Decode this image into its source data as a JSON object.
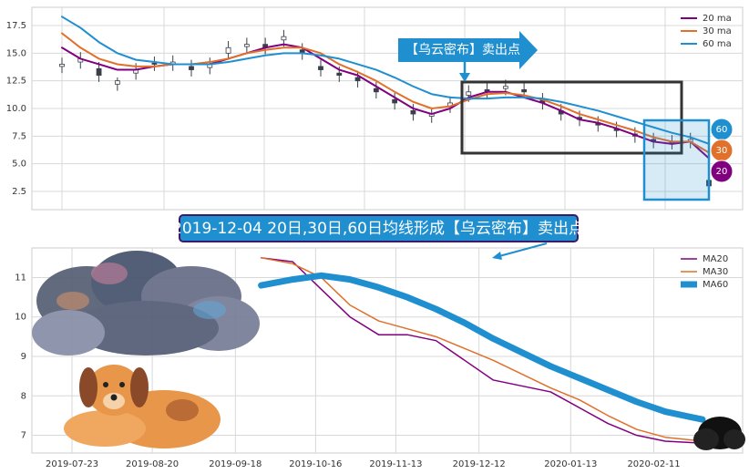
{
  "chart_data": [
    {
      "type": "candlestick",
      "categories": [
        null,
        null,
        null,
        null,
        null,
        null,
        null,
        null,
        null,
        null,
        null,
        null,
        null,
        null,
        null,
        null,
        null,
        null,
        null,
        null,
        null,
        null,
        null,
        null,
        null,
        null,
        null,
        null,
        null,
        null,
        null,
        null,
        null,
        null,
        null,
        null
      ],
      "open": [
        13.8,
        14.2,
        13.6,
        12.2,
        13.2,
        14.1,
        14.0,
        13.8,
        13.7,
        15.0,
        15.6,
        15.8,
        16.2,
        15.3,
        13.8,
        13.2,
        12.8,
        11.8,
        10.8,
        9.8,
        9.3,
        10.2,
        11.2,
        11.7,
        11.8,
        11.7,
        10.8,
        9.8,
        9.2,
        8.7,
        8.2,
        7.7,
        7.2,
        6.9,
        7.0,
        3.5
      ],
      "high": [
        14.6,
        15.1,
        14.2,
        12.8,
        14.1,
        14.7,
        14.8,
        14.4,
        14.6,
        16.1,
        16.4,
        16.4,
        17.1,
        15.9,
        14.4,
        13.8,
        13.4,
        12.4,
        11.4,
        10.4,
        10.1,
        11.1,
        12.1,
        12.3,
        12.6,
        12.3,
        11.4,
        10.4,
        9.8,
        9.3,
        8.8,
        8.3,
        7.8,
        7.6,
        7.8,
        4.1
      ],
      "low": [
        13.2,
        13.6,
        12.4,
        11.6,
        12.6,
        13.4,
        13.4,
        12.9,
        13.1,
        14.4,
        15.0,
        14.9,
        15.6,
        14.4,
        12.9,
        12.4,
        11.9,
        10.9,
        9.9,
        8.9,
        8.7,
        9.6,
        10.6,
        10.9,
        11.2,
        10.9,
        9.9,
        8.9,
        8.4,
        7.9,
        7.4,
        6.9,
        6.4,
        6.3,
        6.4,
        2.4
      ],
      "close": [
        14,
        14.5,
        13,
        12.5,
        13.5,
        14,
        14.2,
        13.5,
        14,
        15.5,
        15.8,
        15.5,
        16.5,
        15,
        13.5,
        13,
        12.5,
        11.5,
        10.5,
        9.5,
        9.5,
        10.5,
        11.5,
        11.5,
        12,
        11.5,
        10.5,
        9.5,
        9,
        8.5,
        8,
        7.5,
        7,
        7,
        7.2,
        3
      ],
      "candle_color": "#3a3f4a",
      "series": [
        {
          "name": "20 ma",
          "color": "#800080",
          "values": [
            15.5,
            14.5,
            14,
            13.5,
            13.5,
            13.8,
            14,
            14,
            14,
            14.5,
            15,
            15.5,
            15.8,
            15.5,
            14.5,
            13.5,
            13,
            12,
            11,
            10,
            9.5,
            10,
            11,
            11.5,
            11.5,
            11,
            10.5,
            9.8,
            9,
            8.7,
            8.2,
            7.6,
            7,
            6.8,
            7,
            5.5
          ]
        },
        {
          "name": "30 ma",
          "color": "#e0702a",
          "values": [
            16.8,
            15.5,
            14.5,
            14,
            13.8,
            13.8,
            14,
            14,
            14.2,
            14.5,
            15,
            15.3,
            15.5,
            15.5,
            15,
            14,
            13.3,
            12.5,
            11.5,
            10.6,
            10,
            10.2,
            10.8,
            11.3,
            11.4,
            11.2,
            10.8,
            10.2,
            9.5,
            9,
            8.5,
            8,
            7.4,
            7,
            7,
            6
          ]
        },
        {
          "name": "60 ma",
          "color": "#1f8fd0",
          "values": [
            18.3,
            17.3,
            16,
            15,
            14.4,
            14.2,
            14,
            14,
            14,
            14.2,
            14.5,
            14.8,
            15,
            15,
            14.8,
            14.5,
            14,
            13.5,
            12.8,
            12,
            11.3,
            11,
            10.9,
            10.9,
            11,
            11,
            10.9,
            10.6,
            10.2,
            9.8,
            9.3,
            8.8,
            8.3,
            7.8,
            7.4,
            6.8
          ]
        }
      ],
      "ylim": [
        0.85,
        19.15
      ],
      "yticks": [
        2.5,
        {
          "value": 5,
          "label": "5.0"
        },
        7.5,
        {
          "value": 10,
          "label": "10.0"
        },
        12.5,
        {
          "value": 15,
          "label": "15.0"
        },
        17.5
      ],
      "grid": true,
      "legend": "upper right",
      "annotations": {
        "arrow_label": "【乌云密布】卖出点",
        "markers": [
          "60",
          "30",
          "20"
        ],
        "banner": "2019-12-04 20日,30日,60日均线形成【乌云密布】卖出点"
      }
    },
    {
      "type": "line",
      "x": [
        "2019-09-27",
        "2019-10-08",
        "2019-10-18",
        "2019-10-28",
        "2019-11-07",
        "2019-11-17",
        "2019-11-27",
        "2019-12-07",
        "2019-12-17",
        "2019-12-27",
        "2020-01-06",
        "2020-01-16",
        "2020-01-26",
        "2020-02-05",
        "2020-02-15",
        "2020-02-28"
      ],
      "series": [
        {
          "name": "MA20",
          "color": "#800080",
          "values": [
            11.5,
            11.4,
            10.7,
            10.0,
            9.55,
            9.55,
            9.4,
            8.9,
            8.4,
            8.25,
            8.1,
            7.7,
            7.3,
            7.0,
            6.85,
            6.8
          ]
        },
        {
          "name": "MA30",
          "color": "#e0702a",
          "values": [
            11.5,
            11.35,
            11.0,
            10.3,
            9.9,
            9.7,
            9.5,
            9.2,
            8.9,
            8.55,
            8.2,
            7.9,
            7.5,
            7.15,
            6.95,
            6.85
          ]
        },
        {
          "name": "MA60",
          "color": "#1f8fd0",
          "values": [
            10.8,
            10.95,
            11.05,
            10.95,
            10.75,
            10.5,
            10.2,
            9.85,
            9.45,
            9.1,
            8.75,
            8.45,
            8.15,
            7.85,
            7.6,
            7.4
          ]
        }
      ],
      "xlim": [
        "2019-07-09",
        "2020-03-13"
      ],
      "xticks": [
        "2019-07-23",
        "2019-08-20",
        "2019-09-18",
        "2019-10-16",
        "2019-11-13",
        "2019-12-12",
        "2020-01-13",
        "2020-02-11"
      ],
      "ylim": [
        6.55,
        11.75
      ],
      "yticks": [
        7,
        8,
        9,
        10,
        11
      ],
      "grid": true,
      "legend": "upper right"
    }
  ]
}
